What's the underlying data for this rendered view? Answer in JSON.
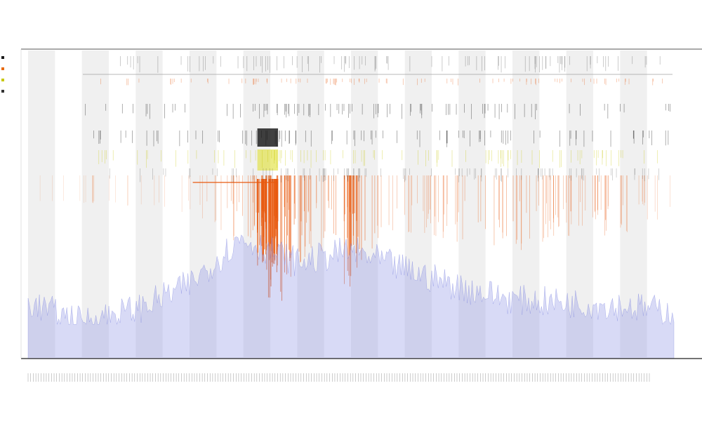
{
  "chart_data": {
    "type": "area",
    "title": "",
    "subtitle_lines": [
      "",
      ""
    ],
    "xlabel": "",
    "ylabel": "",
    "grid": false,
    "shaded_bands": true,
    "legend_placement": "left",
    "legend": [
      {
        "name": "",
        "color": "#1a1a1a"
      },
      {
        "name": "",
        "color": "#e86a10"
      },
      {
        "name": "",
        "color": "#c8c800"
      },
      {
        "name": "",
        "color": "#333333"
      }
    ],
    "track_labels": [
      "",
      ""
    ],
    "colors": {
      "baseline_area": "#8f95e6",
      "event_orange": "#e85a10",
      "event_yellow": "#e0e030",
      "event_black": "#111111",
      "band_shade": "#ededed",
      "axis": "#333333"
    },
    "tick_count": 240,
    "baseline_profile": {
      "x": [
        0,
        8,
        17,
        25,
        33,
        42,
        50,
        58,
        67,
        75,
        83,
        92,
        100
      ],
      "y": [
        0.09,
        0.03,
        0.07,
        0.15,
        0.3,
        0.22,
        0.26,
        0.2,
        0.14,
        0.1,
        0.09,
        0.08,
        0.06
      ]
    },
    "event_intensity": {
      "x": [
        0,
        8,
        17,
        25,
        30,
        35,
        38,
        41,
        44,
        48,
        50,
        55,
        60,
        65,
        70,
        75,
        80,
        85,
        90,
        95,
        100
      ],
      "y": [
        0.0,
        0.02,
        0.04,
        0.1,
        0.25,
        0.45,
        1.0,
        0.6,
        0.35,
        0.5,
        0.8,
        0.3,
        0.25,
        0.3,
        0.35,
        0.4,
        0.3,
        0.25,
        0.3,
        0.2,
        0.1
      ]
    }
  }
}
